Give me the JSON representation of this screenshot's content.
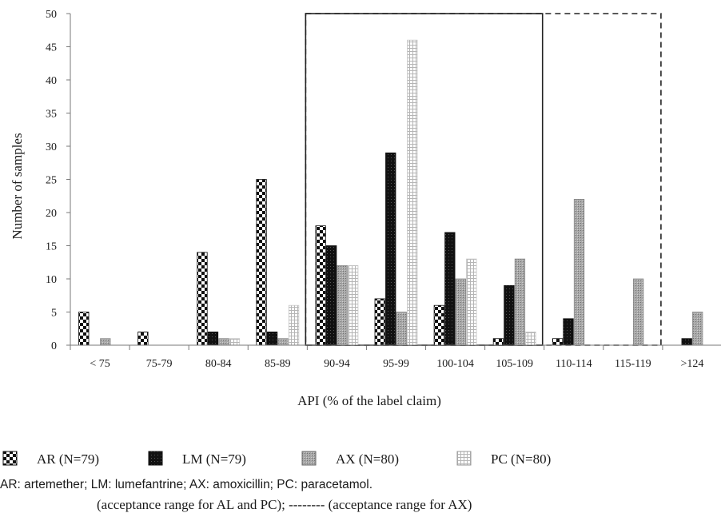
{
  "chart_data": {
    "type": "bar",
    "xlabel": "API (% of the label claim)",
    "ylabel": "Number of samples",
    "ylim": [
      0,
      50
    ],
    "yticks": [
      0,
      5,
      10,
      15,
      20,
      25,
      30,
      35,
      40,
      45,
      50
    ],
    "categories": [
      "< 75",
      "75-79",
      "80-84",
      "85-89",
      "90-94",
      "95-99",
      "100-104",
      "105-109",
      "110-114",
      "115-119",
      ">124"
    ],
    "series": [
      {
        "name": "AR (N=79)",
        "pattern": "checker",
        "values": [
          5,
          2,
          14,
          25,
          18,
          7,
          6,
          1,
          1,
          0,
          0
        ]
      },
      {
        "name": "LM (N=79)",
        "pattern": "solid-black",
        "values": [
          0,
          0,
          2,
          2,
          15,
          29,
          17,
          9,
          4,
          0,
          1
        ]
      },
      {
        "name": "AX (N=80)",
        "pattern": "gray-dots",
        "values": [
          1,
          0,
          1,
          1,
          12,
          5,
          10,
          13,
          22,
          10,
          5
        ]
      },
      {
        "name": "PC (N=80)",
        "pattern": "grid",
        "values": [
          0,
          0,
          1,
          6,
          12,
          46,
          13,
          2,
          0,
          0,
          0
        ]
      }
    ],
    "acceptance_ranges": [
      {
        "from": "90-94",
        "to": "105-109",
        "line_style": "solid"
      },
      {
        "from": "90-94",
        "to": "115-119",
        "line_style": "dashed"
      }
    ],
    "grid": false,
    "legend_position": "bottom"
  },
  "notes": {
    "line1": "AR: artemether; LM: lumefantrine; AX: amoxicillin; PC: paracetamol.",
    "line2": "(acceptance range for AL and PC); -------- (acceptance range for AX)"
  },
  "colors": {
    "axis": "#7a7a7a",
    "lm_fill": "#111111",
    "ax_fill": "#9a9a9a",
    "pc_line": "#bdbdbd"
  }
}
